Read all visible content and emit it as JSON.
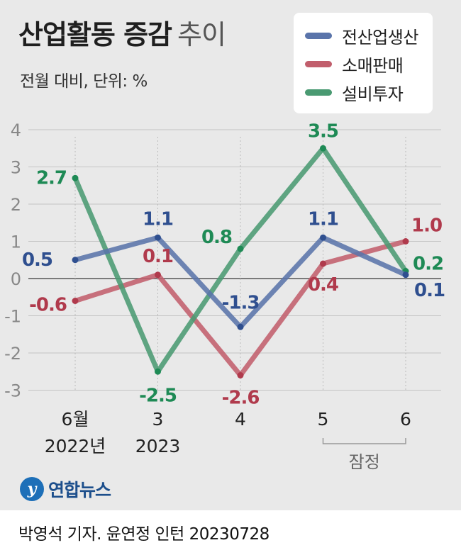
{
  "header": {
    "title": "산업활동 증감",
    "title_suffix": "추이",
    "subtitle": "전월 대비, 단위: %"
  },
  "legend": [
    {
      "label": "전산업생산",
      "color": "#5a74aa"
    },
    {
      "label": "소매판매",
      "color": "#c15e6c"
    },
    {
      "label": "설비투자",
      "color": "#4a9a72"
    }
  ],
  "chart_data": {
    "type": "line",
    "categories": [
      "6월\n2022년",
      "3\n2023",
      "4",
      "5",
      "6"
    ],
    "x_tick_lines": [
      [
        "6월",
        "2022년"
      ],
      [
        "3",
        "2023"
      ],
      [
        "4"
      ],
      [
        "5"
      ],
      [
        "6"
      ]
    ],
    "ylim": [
      -3,
      4
    ],
    "yticks": [
      4,
      3,
      2,
      1,
      0,
      -1,
      -2,
      -3
    ],
    "grid": true,
    "legend_position": "top-right",
    "bracket_label": "잠정",
    "series": [
      {
        "name": "전산업생산",
        "color": "#5a74aa",
        "label_color": "#2f4f8f",
        "values": [
          0.5,
          1.1,
          -1.3,
          1.1,
          0.1
        ],
        "labels": [
          "0.5",
          "1.1",
          "-1.3",
          "1.1",
          "0.1"
        ]
      },
      {
        "name": "소매판매",
        "color": "#c15e6c",
        "label_color": "#b03a4c",
        "values": [
          -0.6,
          0.1,
          -2.6,
          0.4,
          1.0
        ],
        "labels": [
          "-0.6",
          "0.1",
          "-2.6",
          "0.4",
          "1.0"
        ]
      },
      {
        "name": "설비투자",
        "color": "#4a9a72",
        "label_color": "#1e8a55",
        "values": [
          2.7,
          -2.5,
          0.8,
          3.5,
          0.2
        ],
        "labels": [
          "2.7",
          "-2.5",
          "0.8",
          "3.5",
          "0.2"
        ]
      }
    ]
  },
  "branding": {
    "logo_mark": "y",
    "logo_text": "연합뉴스"
  },
  "footer": {
    "credit": "박영석 기자. 윤연정 인턴  20230728"
  }
}
